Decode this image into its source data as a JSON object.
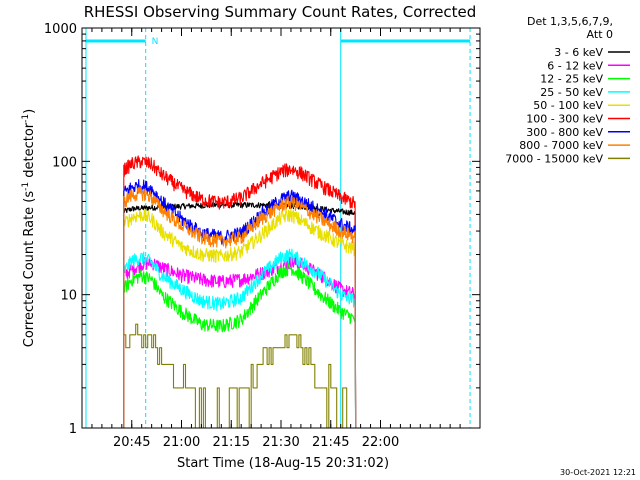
{
  "chart_data": {
    "type": "line",
    "title": "RHESSI Observing Summary Count Rates, Corrected",
    "xlabel": "Start Time (18-Aug-15 20:31:02)",
    "ylabel_main": "Corrected Count Rate (s",
    "ylabel_sup1": "-1",
    "ylabel_mid": " detector",
    "ylabel_sup2": "-1",
    "ylabel_end": ")",
    "yscale": "log",
    "ylim": [
      1,
      1000
    ],
    "xlim_minutes": [
      20.5,
      22.5
    ],
    "x_unit": "hours (UT)",
    "x_ticks": [
      {
        "t": 20.75,
        "label": "20:45"
      },
      {
        "t": 21.0,
        "label": "21:00"
      },
      {
        "t": 21.25,
        "label": "21:15"
      },
      {
        "t": 21.5,
        "label": "21:30"
      },
      {
        "t": 21.75,
        "label": "21:45"
      },
      {
        "t": 22.0,
        "label": "22:00"
      }
    ],
    "y_ticks": [
      {
        "v": 1,
        "label": "1"
      },
      {
        "v": 10,
        "label": "10"
      },
      {
        "v": 100,
        "label": "100"
      },
      {
        "v": 1000,
        "label": "1000"
      }
    ],
    "legend_header_1": "Det 1,3,5,6,7,9,",
    "legend_header_2": "Att 0",
    "legend_position": "right, outside plot",
    "night_marker": "N",
    "grid": false,
    "data_start": 20.708,
    "data_end": 21.875,
    "series": [
      {
        "name": "3 - 6 keV",
        "color": "#000000",
        "points": [
          [
            20.71,
            42
          ],
          [
            20.75,
            44
          ],
          [
            20.85,
            45
          ],
          [
            21.0,
            46
          ],
          [
            21.15,
            47
          ],
          [
            21.3,
            47
          ],
          [
            21.45,
            47
          ],
          [
            21.6,
            46
          ],
          [
            21.7,
            44
          ],
          [
            21.8,
            42
          ],
          [
            21.875,
            41
          ]
        ]
      },
      {
        "name": "6 - 12 keV",
        "color": "#ff00ff",
        "points": [
          [
            20.71,
            14
          ],
          [
            20.75,
            15.5
          ],
          [
            20.8,
            17
          ],
          [
            20.85,
            17.5
          ],
          [
            20.9,
            16
          ],
          [
            21.0,
            14
          ],
          [
            21.1,
            13
          ],
          [
            21.2,
            12.5
          ],
          [
            21.3,
            13
          ],
          [
            21.4,
            14.5
          ],
          [
            21.5,
            16.5
          ],
          [
            21.55,
            17.5
          ],
          [
            21.6,
            17
          ],
          [
            21.7,
            14
          ],
          [
            21.8,
            11
          ],
          [
            21.875,
            10
          ]
        ]
      },
      {
        "name": "12 - 25 keV",
        "color": "#00ff00",
        "points": [
          [
            20.71,
            11
          ],
          [
            20.75,
            13
          ],
          [
            20.8,
            14
          ],
          [
            20.85,
            13
          ],
          [
            20.9,
            10
          ],
          [
            21.0,
            7.5
          ],
          [
            21.1,
            6
          ],
          [
            21.2,
            5.8
          ],
          [
            21.3,
            6.5
          ],
          [
            21.4,
            10
          ],
          [
            21.5,
            15
          ],
          [
            21.55,
            16
          ],
          [
            21.6,
            14
          ],
          [
            21.7,
            10
          ],
          [
            21.8,
            7.5
          ],
          [
            21.875,
            6.5
          ]
        ]
      },
      {
        "name": "25 - 50 keV",
        "color": "#00ffff",
        "points": [
          [
            20.71,
            15
          ],
          [
            20.75,
            18
          ],
          [
            20.8,
            19
          ],
          [
            20.85,
            17.5
          ],
          [
            20.9,
            14
          ],
          [
            21.0,
            11
          ],
          [
            21.1,
            9
          ],
          [
            21.2,
            8.5
          ],
          [
            21.3,
            9.5
          ],
          [
            21.4,
            14
          ],
          [
            21.5,
            19
          ],
          [
            21.55,
            20
          ],
          [
            21.6,
            18
          ],
          [
            21.7,
            14
          ],
          [
            21.8,
            10
          ],
          [
            21.875,
            9
          ]
        ]
      },
      {
        "name": "50 - 100 keV",
        "color": "#e8e000",
        "points": [
          [
            20.71,
            34
          ],
          [
            20.75,
            38
          ],
          [
            20.8,
            40
          ],
          [
            20.85,
            37
          ],
          [
            20.9,
            30
          ],
          [
            21.0,
            23
          ],
          [
            21.1,
            20
          ],
          [
            21.2,
            19.5
          ],
          [
            21.3,
            21
          ],
          [
            21.4,
            28
          ],
          [
            21.5,
            38
          ],
          [
            21.55,
            40
          ],
          [
            21.6,
            36
          ],
          [
            21.7,
            29
          ],
          [
            21.8,
            24
          ],
          [
            21.875,
            22
          ]
        ]
      },
      {
        "name": "100 - 300 keV",
        "color": "#ff0000",
        "points": [
          [
            20.71,
            86
          ],
          [
            20.75,
            96
          ],
          [
            20.8,
            100
          ],
          [
            20.85,
            95
          ],
          [
            20.9,
            80
          ],
          [
            21.0,
            62
          ],
          [
            21.1,
            52
          ],
          [
            21.2,
            49
          ],
          [
            21.3,
            53
          ],
          [
            21.4,
            68
          ],
          [
            21.5,
            84
          ],
          [
            21.55,
            88
          ],
          [
            21.6,
            82
          ],
          [
            21.7,
            66
          ],
          [
            21.8,
            54
          ],
          [
            21.875,
            48
          ]
        ]
      },
      {
        "name": "300 - 800 keV",
        "color": "#0000ff",
        "points": [
          [
            20.71,
            58
          ],
          [
            20.75,
            64
          ],
          [
            20.8,
            66
          ],
          [
            20.85,
            62
          ],
          [
            20.9,
            50
          ],
          [
            21.0,
            37
          ],
          [
            21.1,
            29
          ],
          [
            21.2,
            27
          ],
          [
            21.3,
            29
          ],
          [
            21.4,
            40
          ],
          [
            21.5,
            52
          ],
          [
            21.55,
            55
          ],
          [
            21.6,
            51
          ],
          [
            21.7,
            42
          ],
          [
            21.8,
            34
          ],
          [
            21.875,
            30
          ]
        ]
      },
      {
        "name": "800 - 7000 keV",
        "color": "#ff8000",
        "points": [
          [
            20.71,
            50
          ],
          [
            20.75,
            56
          ],
          [
            20.8,
            58
          ],
          [
            20.85,
            54
          ],
          [
            20.9,
            44
          ],
          [
            21.0,
            33
          ],
          [
            21.1,
            27
          ],
          [
            21.2,
            25
          ],
          [
            21.3,
            27
          ],
          [
            21.4,
            37
          ],
          [
            21.5,
            47
          ],
          [
            21.55,
            50
          ],
          [
            21.6,
            46
          ],
          [
            21.7,
            37
          ],
          [
            21.8,
            30
          ],
          [
            21.875,
            27
          ]
        ]
      },
      {
        "name": "7000 - 15000 keV",
        "color": "#808000",
        "points": [
          [
            20.71,
            4
          ],
          [
            20.75,
            5
          ],
          [
            20.8,
            5
          ],
          [
            20.85,
            4.5
          ],
          [
            20.9,
            3.5
          ],
          [
            21.0,
            2
          ],
          [
            21.1,
            1.3
          ],
          [
            21.2,
            1.1
          ],
          [
            21.3,
            1.6
          ],
          [
            21.4,
            3
          ],
          [
            21.5,
            4.5
          ],
          [
            21.55,
            5
          ],
          [
            21.6,
            4
          ],
          [
            21.7,
            2.5
          ],
          [
            21.8,
            1.6
          ],
          [
            21.85,
            1.3
          ]
        ]
      }
    ]
  },
  "footer_timestamp": "30-Oct-2021 12:21"
}
